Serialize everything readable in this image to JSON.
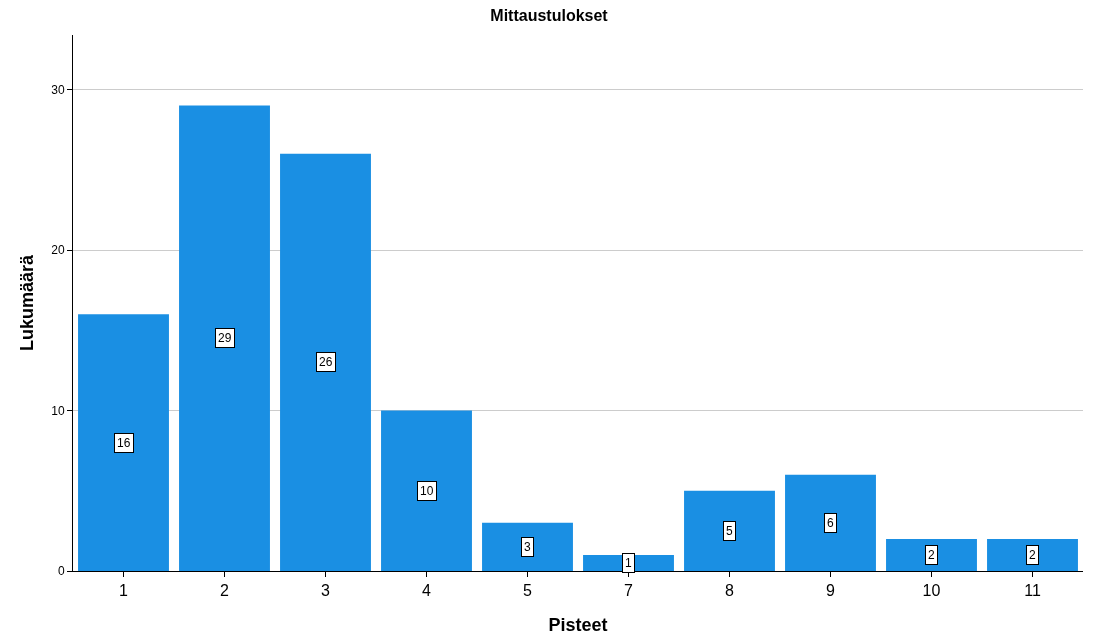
{
  "chart_data": {
    "type": "bar",
    "title": "Mittaustulokset",
    "xlabel": "Pisteet",
    "ylabel": "Lukumäärä",
    "categories": [
      "1",
      "2",
      "3",
      "4",
      "5",
      "7",
      "8",
      "9",
      "10",
      "11"
    ],
    "values": [
      16,
      29,
      26,
      10,
      3,
      1,
      5,
      6,
      2,
      2
    ],
    "color": "#1a8fe3",
    "ylim": [
      0,
      33.4
    ],
    "yticks": [
      0,
      10,
      20,
      30
    ],
    "grid": "y",
    "data_labels": true
  }
}
